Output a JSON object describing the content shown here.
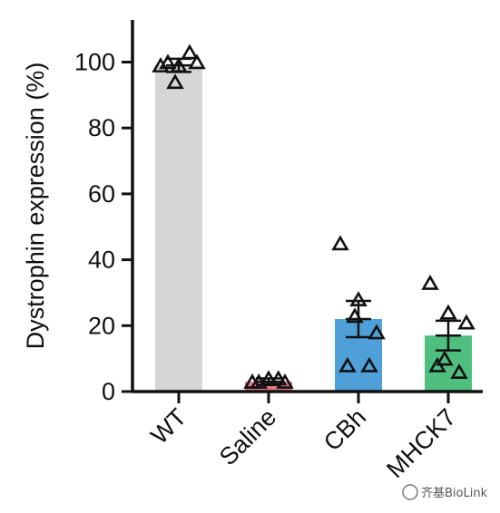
{
  "chart_data": {
    "type": "bar",
    "ylabel": "Dystrophin expression (%)",
    "xlabel": "",
    "ylim": [
      0,
      110
    ],
    "yticks": [
      0,
      20,
      40,
      60,
      80,
      100
    ],
    "grid": false,
    "categories": [
      "WT",
      "Saline",
      "CBh",
      "MHCK7"
    ],
    "colors": [
      "#d6d6d6",
      "#e07b85",
      "#4f9fd8",
      "#4fbf7f"
    ],
    "means": [
      99,
      3,
      22,
      17
    ],
    "sem": [
      2,
      1,
      5.5,
      4.5
    ],
    "points": [
      [
        99,
        99,
        100,
        100,
        103,
        94
      ],
      [
        3,
        4,
        3,
        3,
        4
      ],
      [
        45,
        28,
        18,
        8,
        8,
        23
      ],
      [
        33,
        24,
        21,
        8,
        6,
        10
      ]
    ],
    "marker": "open-triangle"
  },
  "watermark": "齐基BioLink"
}
